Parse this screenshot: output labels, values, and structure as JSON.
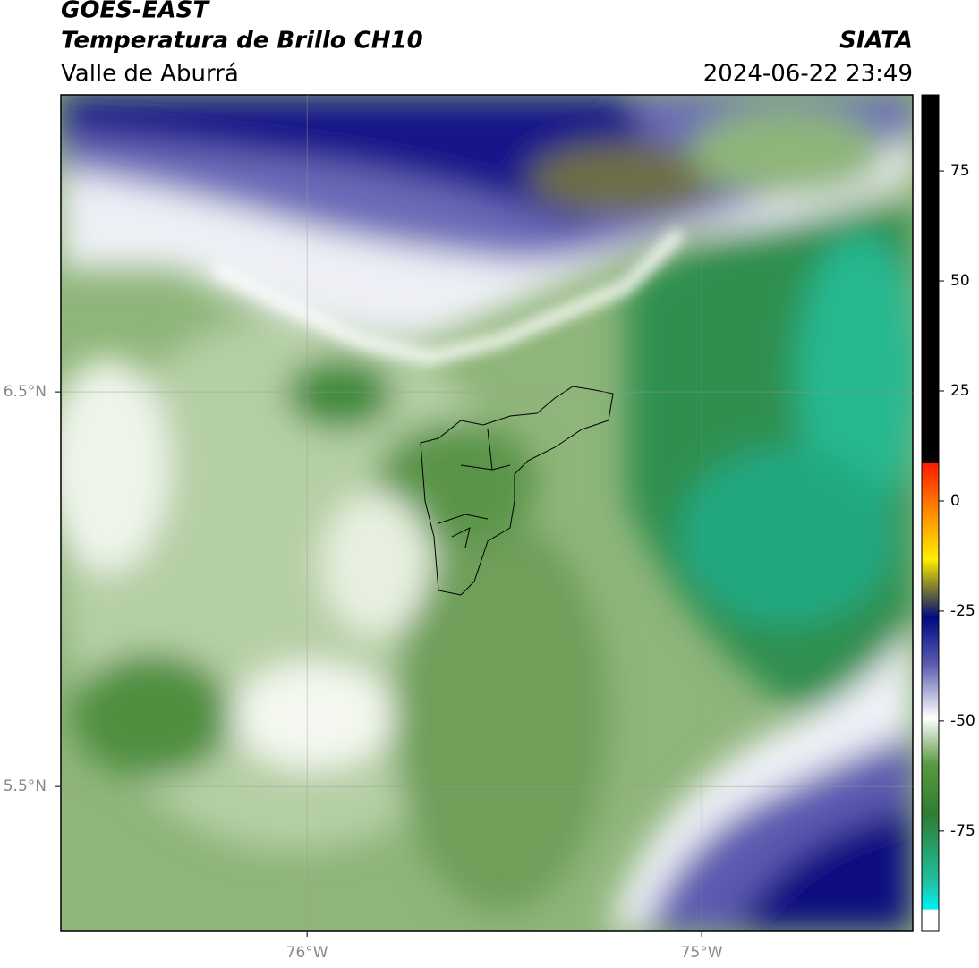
{
  "header": {
    "title": "GOES-EAST",
    "subtitle": "Temperatura de Brillo CH10",
    "region": "Valle de Aburrá",
    "source": "SIATA",
    "datetime": "2024-06-22 23:49"
  },
  "map": {
    "xlim": [
      -76.624,
      -74.465
    ],
    "ylim": [
      5.133,
      7.253
    ],
    "xticks": [
      {
        "value": -76,
        "label": "76°W"
      },
      {
        "value": -75,
        "label": "75°W"
      }
    ],
    "yticks": [
      {
        "value": 6.5,
        "label": "6.5°N"
      },
      {
        "value": 5.5,
        "label": "5.5°N"
      }
    ],
    "grid": true
  },
  "colorbar": {
    "lim": [
      -97.8,
      92.3
    ],
    "ticks": [
      75,
      50,
      25,
      0,
      -25,
      -50,
      -75
    ]
  }
}
